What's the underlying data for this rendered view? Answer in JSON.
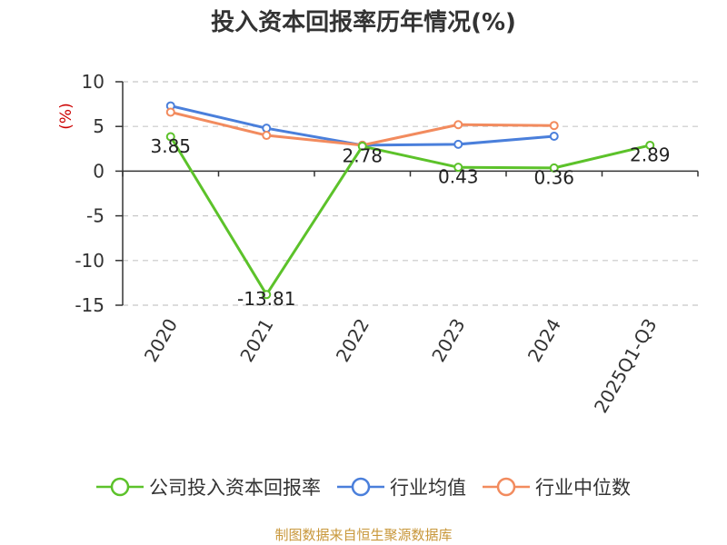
{
  "chart_data": {
    "type": "line",
    "title": "投入资本回报率历年情况(%)",
    "ylabel": "(%)",
    "xlabel": "",
    "categories": [
      "2020",
      "2021",
      "2022",
      "2023",
      "2024",
      "2025Q1-Q3"
    ],
    "ylim": [
      -15,
      10
    ],
    "yticks": [
      10,
      5,
      0,
      -5,
      -10,
      -15
    ],
    "grid": "horizontal dashed",
    "legend_position": "bottom",
    "series": [
      {
        "name": "公司投入资本回报率",
        "color": "#5cc22a",
        "values": [
          3.85,
          -13.81,
          2.78,
          0.43,
          0.36,
          2.89
        ],
        "labels": [
          "3.85",
          "-13.81",
          "2.78",
          "0.43",
          "0.36",
          "2.89"
        ]
      },
      {
        "name": "行业均值",
        "color": "#4a7fdb",
        "values": [
          7.3,
          4.8,
          2.9,
          3.0,
          3.9,
          null
        ]
      },
      {
        "name": "行业中位数",
        "color": "#f28b5e",
        "values": [
          6.6,
          4.0,
          2.9,
          5.2,
          5.1,
          null
        ]
      }
    ]
  },
  "footer": {
    "source": "制图数据来自恒生聚源数据库",
    "source_color": "#c8973a"
  },
  "ylabel_color": "#cc0000"
}
